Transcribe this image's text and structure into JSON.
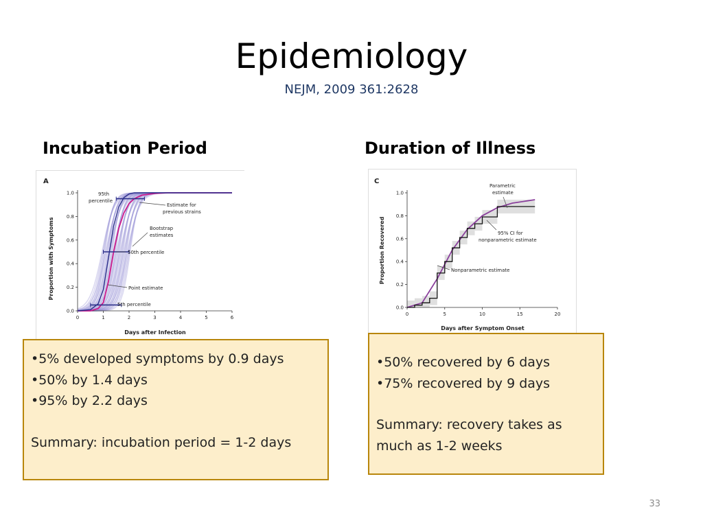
{
  "slide": {
    "title": "Epidemiology",
    "subtitle": "NEJM, 2009 361:2628",
    "page_number": "33",
    "colors": {
      "subtitle": "#1f3864",
      "box_fill": "#fdeecb",
      "box_border": "#b8860b",
      "curve_magenta": "#cc1a8c",
      "curve_navy": "#2b2f8a",
      "band_lavender": "#9b96d6"
    }
  },
  "left": {
    "heading": "Incubation Period",
    "figure": {
      "panel_label": "A",
      "ylabel": "Proportion with Symptoms",
      "xlabel": "Days after Infection",
      "yticks": [
        "0.0",
        "0.2",
        "0.4",
        "0.6",
        "0.8",
        "1.0"
      ],
      "xticks": [
        "0",
        "1",
        "2",
        "3",
        "4",
        "5",
        "6"
      ],
      "annotations": {
        "p95_line1": "95th",
        "p95_line2": "percentile",
        "prev_line1": "Estimate for",
        "prev_line2": "previous strains",
        "boot_line1": "Bootstrap",
        "boot_line2": "estimates",
        "p50": "50th percentile",
        "point": "Point estimate",
        "p5": "5th percentile"
      }
    },
    "box": {
      "bullets": [
        "•5% developed symptoms by 0.9 days",
        "•50% by 1.4 days",
        "•95% by 2.2 days"
      ],
      "summary": "Summary:  incubation period = 1-2 days"
    }
  },
  "right": {
    "heading": "Duration of Illness",
    "figure": {
      "panel_label": "C",
      "ylabel": "Proportion Recovered",
      "xlabel": "Days after Symptom Onset",
      "yticks": [
        "0.0",
        "0.2",
        "0.4",
        "0.6",
        "0.8",
        "1.0"
      ],
      "xticks": [
        "0",
        "5",
        "10",
        "15",
        "20"
      ],
      "annotations": {
        "param_line1": "Parametric",
        "param_line2": "estimate",
        "ci_line1": "95% CI for",
        "ci_line2": "nonparametric estimate",
        "nonparam": "Nonparametric estimate"
      }
    },
    "box": {
      "bullets": [
        "•50% recovered by 6 days",
        "•75% recovered by 9 days"
      ],
      "summary_line1": "Summary:  recovery takes as",
      "summary_line2": "much as 1-2 weeks"
    }
  },
  "chart_data": [
    {
      "type": "line",
      "title": "",
      "xlabel": "Days after Infection",
      "ylabel": "Proportion with Symptoms",
      "xlim": [
        0,
        6
      ],
      "ylim": [
        0,
        1
      ],
      "x": [
        0,
        0.5,
        0.8,
        1.0,
        1.2,
        1.4,
        1.6,
        1.8,
        2.0,
        2.2,
        2.5,
        3.0,
        3.5,
        4.0,
        5.0,
        6.0
      ],
      "series": [
        {
          "name": "Point estimate",
          "values": [
            0,
            0.0,
            0.02,
            0.07,
            0.25,
            0.5,
            0.7,
            0.83,
            0.91,
            0.95,
            0.98,
            0.995,
            1.0,
            1.0,
            1.0,
            1.0
          ]
        },
        {
          "name": "Estimate for previous strains",
          "values": [
            0,
            0.01,
            0.06,
            0.18,
            0.45,
            0.72,
            0.88,
            0.96,
            0.99,
            1.0,
            1.0,
            1.0,
            1.0,
            1.0,
            1.0,
            1.0
          ]
        }
      ],
      "percentiles": [
        {
          "name": "5th percentile",
          "y": 0.05,
          "x_range": [
            0.5,
            1.7
          ]
        },
        {
          "name": "50th percentile",
          "y": 0.5,
          "x_range": [
            1.0,
            2.0
          ]
        },
        {
          "name": "95th percentile",
          "y": 0.95,
          "x_range": [
            1.5,
            2.6
          ]
        }
      ]
    },
    {
      "type": "line",
      "title": "",
      "xlabel": "Days after Symptom Onset",
      "ylabel": "Proportion Recovered",
      "xlim": [
        0,
        20
      ],
      "ylim": [
        0,
        1
      ],
      "series": [
        {
          "name": "Parametric estimate",
          "x": [
            0,
            2,
            4,
            6,
            8,
            10,
            12,
            14,
            16,
            17
          ],
          "values": [
            0,
            0.04,
            0.25,
            0.5,
            0.68,
            0.8,
            0.87,
            0.91,
            0.93,
            0.94
          ]
        },
        {
          "name": "Nonparametric estimate",
          "x": [
            0,
            1,
            2,
            3,
            4,
            5,
            6,
            7,
            8,
            9,
            10,
            12,
            17
          ],
          "values": [
            0,
            0.02,
            0.04,
            0.08,
            0.3,
            0.4,
            0.52,
            0.61,
            0.69,
            0.73,
            0.79,
            0.88,
            0.88
          ]
        }
      ]
    }
  ]
}
